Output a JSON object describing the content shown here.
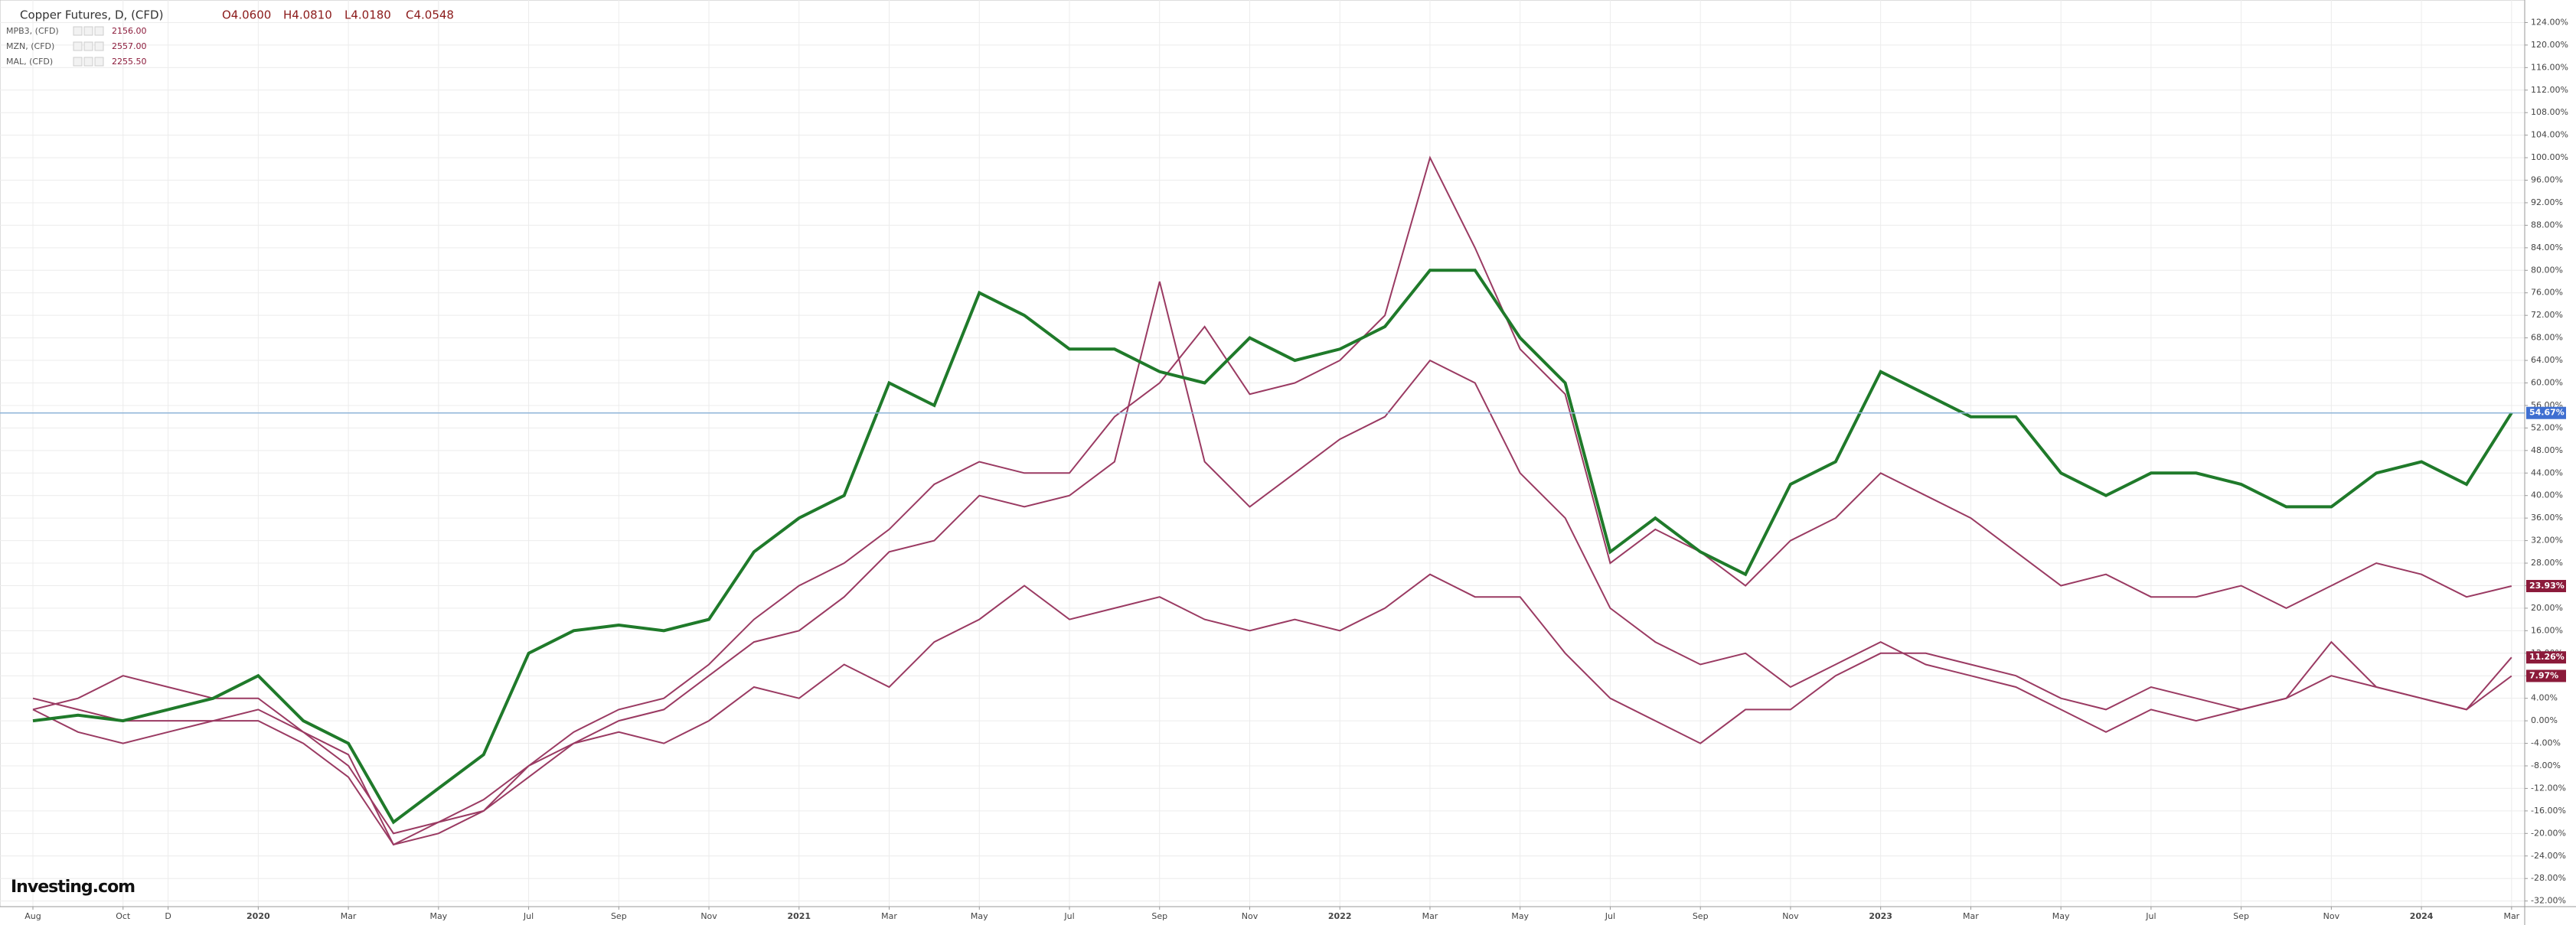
{
  "chart_data": {
    "type": "line",
    "title": "Copper Futures, D, (CFD)",
    "ohlc": [
      "O4.0600",
      "H4.0810",
      "L4.0180",
      "C4.0548"
    ],
    "logo": "Investing.com",
    "x": [
      "2019-08",
      "2019-09",
      "2019-10",
      "2019-11",
      "2019-12",
      "2020-01",
      "2020-02",
      "2020-03",
      "2020-04",
      "2020-05",
      "2020-06",
      "2020-07",
      "2020-08",
      "2020-09",
      "2020-10",
      "2020-11",
      "2020-12",
      "2021-01",
      "2021-02",
      "2021-03",
      "2021-04",
      "2021-05",
      "2021-06",
      "2021-07",
      "2021-08",
      "2021-09",
      "2021-10",
      "2021-11",
      "2021-12",
      "2022-01",
      "2022-02",
      "2022-03",
      "2022-04",
      "2022-05",
      "2022-06",
      "2022-07",
      "2022-08",
      "2022-09",
      "2022-10",
      "2022-11",
      "2022-12",
      "2023-01",
      "2023-02",
      "2023-03",
      "2023-04",
      "2023-05",
      "2023-06",
      "2023-07",
      "2023-08",
      "2023-09",
      "2023-10",
      "2023-11",
      "2023-12",
      "2024-01",
      "2024-02",
      "2024-03"
    ],
    "series": [
      {
        "name": "Copper Futures",
        "color": "#1f7a2a",
        "badge": "54.67%",
        "badge_color": "#3f6fd1",
        "hline": true,
        "values": [
          0,
          1,
          0,
          2,
          4,
          8,
          0,
          -4,
          -18,
          -12,
          -6,
          12,
          16,
          17,
          16,
          18,
          30,
          36,
          40,
          60,
          56,
          76,
          72,
          66,
          66,
          62,
          60,
          68,
          64,
          66,
          70,
          80,
          80,
          68,
          60,
          30,
          36,
          30,
          26,
          42,
          46,
          62,
          58,
          54,
          54,
          44,
          40,
          44,
          44,
          42,
          38,
          38,
          44,
          46,
          42,
          54.67
        ]
      },
      {
        "name": "MAL, (CFD)",
        "price": "2255.50",
        "color": "#9a3a62",
        "badge": "23.93%",
        "badge_color": "#8b1a3a",
        "values": [
          2,
          4,
          8,
          6,
          4,
          4,
          -2,
          -6,
          -22,
          -20,
          -16,
          -8,
          -2,
          2,
          4,
          10,
          18,
          24,
          28,
          34,
          42,
          46,
          44,
          44,
          54,
          60,
          70,
          58,
          60,
          64,
          72,
          100,
          84,
          66,
          58,
          28,
          34,
          30,
          24,
          32,
          36,
          44,
          40,
          36,
          30,
          24,
          26,
          22,
          22,
          24,
          20,
          24,
          28,
          26,
          22,
          23.93
        ]
      },
      {
        "name": "MZN, (CFD)",
        "price": "2557.00",
        "color": "#9a3a62",
        "badge": "11.26%",
        "badge_color": "#8b1a3a",
        "values": [
          4,
          2,
          0,
          0,
          0,
          2,
          -2,
          -8,
          -20,
          -18,
          -16,
          -10,
          -4,
          0,
          2,
          8,
          14,
          16,
          22,
          30,
          32,
          40,
          38,
          40,
          46,
          78,
          46,
          38,
          44,
          50,
          54,
          64,
          60,
          44,
          36,
          20,
          14,
          10,
          12,
          6,
          10,
          14,
          10,
          8,
          6,
          2,
          -2,
          2,
          0,
          2,
          4,
          14,
          6,
          4,
          2,
          11.26
        ]
      },
      {
        "name": "MPB3, (CFD)",
        "price": "2156.00",
        "color": "#9a3a62",
        "badge": "7.97%",
        "badge_color": "#8b1a3a",
        "values": [
          2,
          -2,
          -4,
          -2,
          0,
          0,
          -4,
          -10,
          -22,
          -18,
          -14,
          -8,
          -4,
          -2,
          -4,
          0,
          6,
          4,
          10,
          6,
          14,
          18,
          24,
          18,
          20,
          22,
          18,
          16,
          18,
          16,
          20,
          26,
          22,
          22,
          12,
          4,
          0,
          -4,
          2,
          2,
          8,
          12,
          12,
          10,
          8,
          4,
          2,
          6,
          4,
          2,
          4,
          8,
          6,
          4,
          2,
          7.97
        ]
      }
    ],
    "ylim": [
      -33,
      128
    ],
    "yticks": [
      {
        "value": -32,
        "label": "-32.00%"
      },
      {
        "value": -28,
        "label": "-28.00%"
      },
      {
        "value": -24,
        "label": "-24.00%"
      },
      {
        "value": -20,
        "label": "-20.00%"
      },
      {
        "value": -16,
        "label": "-16.00%"
      },
      {
        "value": -12,
        "label": "-12.00%"
      },
      {
        "value": -8,
        "label": "-8.00%"
      },
      {
        "value": -4,
        "label": "-4.00%"
      },
      {
        "value": 0,
        "label": "0.00%"
      },
      {
        "value": 4,
        "label": "4.00%"
      },
      {
        "value": 8,
        "label": "8.00%"
      },
      {
        "value": 12,
        "label": "12.00%"
      },
      {
        "value": 16,
        "label": "16.00%"
      },
      {
        "value": 20,
        "label": "20.00%"
      },
      {
        "value": 24,
        "label": "24.00%"
      },
      {
        "value": 28,
        "label": "28.00%"
      },
      {
        "value": 32,
        "label": "32.00%"
      },
      {
        "value": 36,
        "label": "36.00%"
      },
      {
        "value": 40,
        "label": "40.00%"
      },
      {
        "value": 44,
        "label": "44.00%"
      },
      {
        "value": 48,
        "label": "48.00%"
      },
      {
        "value": 52,
        "label": "52.00%"
      },
      {
        "value": 56,
        "label": "56.00%"
      },
      {
        "value": 60,
        "label": "60.00%"
      },
      {
        "value": 64,
        "label": "64.00%"
      },
      {
        "value": 68,
        "label": "68.00%"
      },
      {
        "value": 72,
        "label": "72.00%"
      },
      {
        "value": 76,
        "label": "76.00%"
      },
      {
        "value": 80,
        "label": "80.00%"
      },
      {
        "value": 84,
        "label": "84.00%"
      },
      {
        "value": 88,
        "label": "88.00%"
      },
      {
        "value": 92,
        "label": "92.00%"
      },
      {
        "value": 96,
        "label": "96.00%"
      },
      {
        "value": 100,
        "label": "100.00%"
      },
      {
        "value": 104,
        "label": "104.00%"
      },
      {
        "value": 108,
        "label": "108.00%"
      },
      {
        "value": 112,
        "label": "112.00%"
      },
      {
        "value": 116,
        "label": "116.00%"
      },
      {
        "value": 120,
        "label": "120.00%"
      },
      {
        "value": 124,
        "label": "124.00%"
      }
    ],
    "xticks": [
      {
        "value": "2019-08",
        "label": "Aug"
      },
      {
        "value": "2019-10",
        "label": "Oct"
      },
      {
        "value": "2019-11",
        "label": "D"
      },
      {
        "value": "2020-01",
        "label": "2020"
      },
      {
        "value": "2020-03",
        "label": "Mar"
      },
      {
        "value": "2020-05",
        "label": "May"
      },
      {
        "value": "2020-07",
        "label": "Jul"
      },
      {
        "value": "2020-09",
        "label": "Sep"
      },
      {
        "value": "2020-11",
        "label": "Nov"
      },
      {
        "value": "2021-01",
        "label": "2021"
      },
      {
        "value": "2021-03",
        "label": "Mar"
      },
      {
        "value": "2021-05",
        "label": "May"
      },
      {
        "value": "2021-07",
        "label": "Jul"
      },
      {
        "value": "2021-09",
        "label": "Sep"
      },
      {
        "value": "2021-11",
        "label": "Nov"
      },
      {
        "value": "2022-01",
        "label": "2022"
      },
      {
        "value": "2022-03",
        "label": "Mar"
      },
      {
        "value": "2022-05",
        "label": "May"
      },
      {
        "value": "2022-07",
        "label": "Jul"
      },
      {
        "value": "2022-09",
        "label": "Sep"
      },
      {
        "value": "2022-11",
        "label": "Nov"
      },
      {
        "value": "2023-01",
        "label": "2023"
      },
      {
        "value": "2023-03",
        "label": "Mar"
      },
      {
        "value": "2023-05",
        "label": "May"
      },
      {
        "value": "2023-07",
        "label": "Jul"
      },
      {
        "value": "2023-09",
        "label": "Sep"
      },
      {
        "value": "2023-11",
        "label": "Nov"
      },
      {
        "value": "2024-01",
        "label": "2024"
      },
      {
        "value": "2024-03",
        "label": "Mar"
      }
    ],
    "grid": true
  }
}
